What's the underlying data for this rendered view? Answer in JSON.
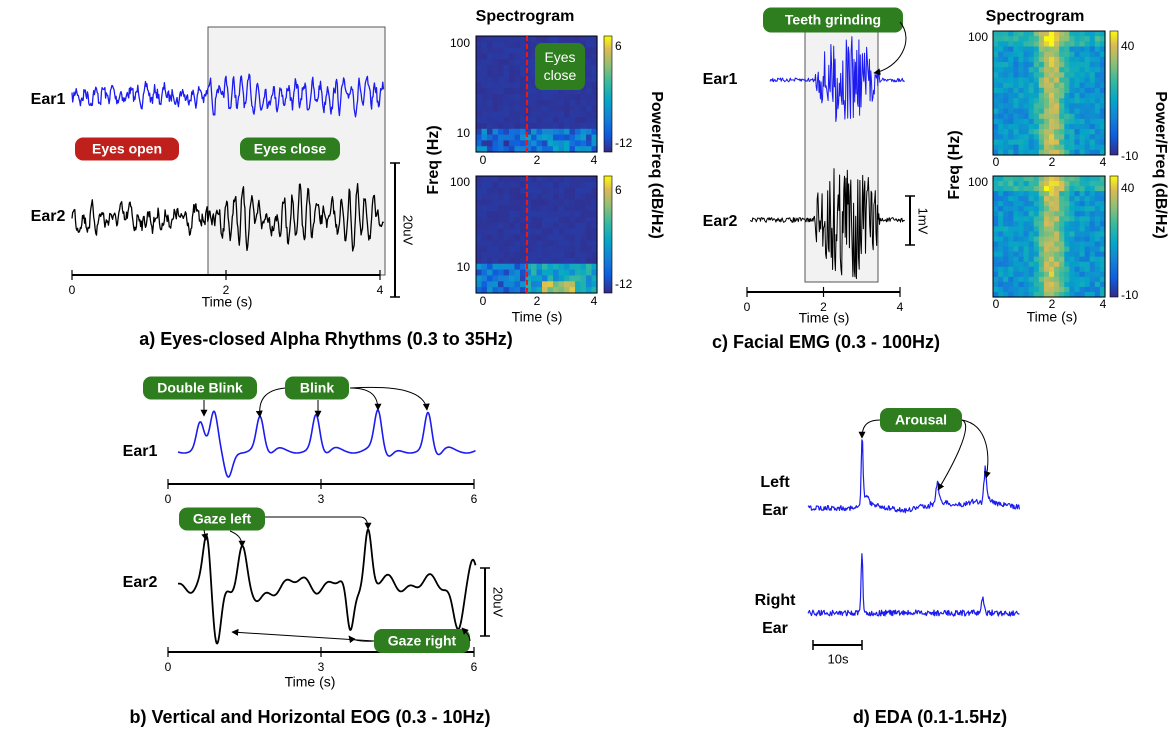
{
  "panel_a": {
    "caption": "a) Eyes-closed Alpha Rhythms (0.3 to 35Hz)",
    "channels": [
      "Ear1",
      "Ear2"
    ],
    "annotations": [
      "Eyes open",
      "Eyes close"
    ],
    "scale_bar": "20uV",
    "x_ticks": [
      "0",
      "2",
      "4"
    ],
    "x_label": "Time (s)",
    "spectrogram": {
      "title": "Spectrogram",
      "y_label": "Freq (Hz)",
      "y_ticks": [
        "100",
        "10"
      ],
      "x_ticks": [
        "0",
        "2",
        "4"
      ],
      "x_label": "Time (s)",
      "colorbar_label": "Power/Freq (dB/Hz)",
      "colorbar_ticks": [
        "6",
        "-12"
      ],
      "annotation": "Eyes close"
    }
  },
  "panel_b": {
    "caption": "b) Vertical and Horizontal EOG (0.3 - 10Hz)",
    "channels": [
      "Ear1",
      "Ear2"
    ],
    "annotations": [
      "Double Blink",
      "Blink",
      "Gaze left",
      "Gaze right"
    ],
    "scale_bar": "20uV",
    "x_ticks": [
      "0",
      "3",
      "6"
    ],
    "x_label": "Time (s)"
  },
  "panel_c": {
    "caption": "c) Facial EMG (0.3 - 100Hz)",
    "channels": [
      "Ear1",
      "Ear2"
    ],
    "annotations": [
      "Teeth grinding"
    ],
    "scale_bar": "1mV",
    "x_ticks": [
      "0",
      "2",
      "4"
    ],
    "x_label": "Time (s)",
    "spectrogram": {
      "title": "Spectrogram",
      "y_label": "Freq (Hz)",
      "y_ticks": [
        "100"
      ],
      "x_ticks": [
        "0",
        "2",
        "4"
      ],
      "x_label": "Time (s)",
      "colorbar_label": "Power/Freq (dB/Hz)",
      "colorbar_ticks": [
        "40",
        "-10"
      ]
    }
  },
  "panel_d": {
    "caption": "d) EDA (0.1-1.5Hz)",
    "channels": [
      "Left Ear",
      "Right Ear"
    ],
    "annotations": [
      "Arousal"
    ],
    "scale_bar": "10s"
  }
}
